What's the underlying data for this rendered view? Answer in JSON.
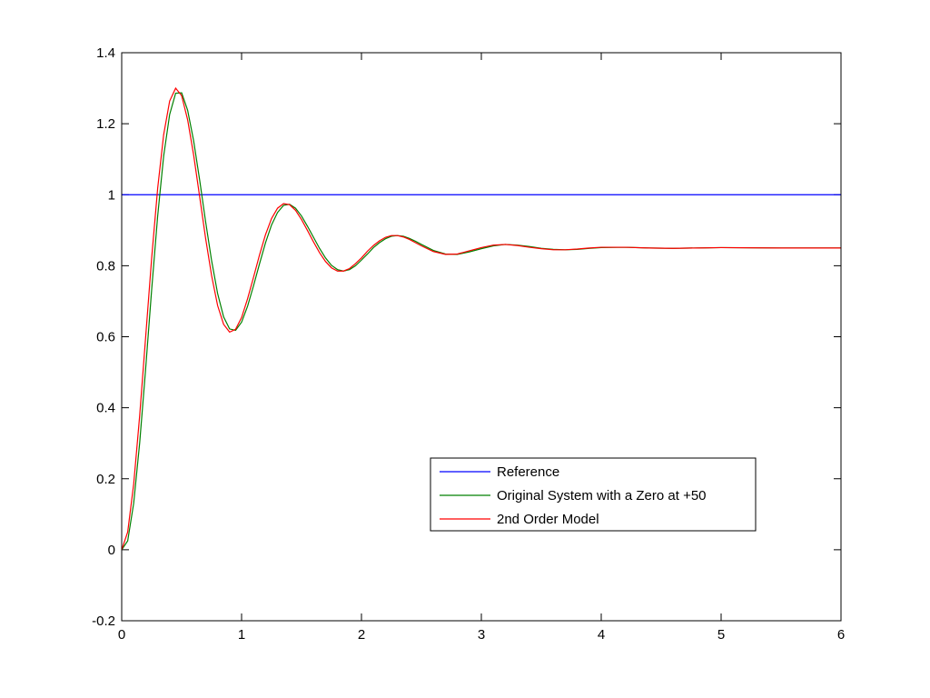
{
  "chart_data": {
    "type": "line",
    "x": [
      0,
      0.05,
      0.1,
      0.15,
      0.2,
      0.25,
      0.3,
      0.35,
      0.4,
      0.45,
      0.5,
      0.55,
      0.6,
      0.65,
      0.7,
      0.75,
      0.8,
      0.85,
      0.9,
      0.95,
      1.0,
      1.05,
      1.1,
      1.15,
      1.2,
      1.25,
      1.3,
      1.35,
      1.4,
      1.45,
      1.5,
      1.55,
      1.6,
      1.65,
      1.7,
      1.75,
      1.8,
      1.85,
      1.9,
      1.95,
      2.0,
      2.05,
      2.1,
      2.15,
      2.2,
      2.25,
      2.3,
      2.35,
      2.4,
      2.45,
      2.5,
      2.6,
      2.7,
      2.8,
      2.9,
      3.0,
      3.1,
      3.2,
      3.3,
      3.4,
      3.5,
      3.6,
      3.7,
      3.8,
      3.9,
      4.0,
      4.2,
      4.4,
      4.6,
      4.8,
      5.0,
      5.5,
      6.0
    ],
    "series": [
      {
        "name": "Reference",
        "color": "#0000ff",
        "x": [
          0,
          6
        ],
        "values": [
          1,
          1
        ]
      },
      {
        "name": "Original System with a Zero at +50",
        "color": "#008000",
        "values": [
          0,
          0.025,
          0.131,
          0.301,
          0.511,
          0.733,
          0.94,
          1.109,
          1.226,
          1.286,
          1.287,
          1.238,
          1.152,
          1.042,
          0.924,
          0.814,
          0.722,
          0.656,
          0.622,
          0.618,
          0.641,
          0.686,
          0.744,
          0.806,
          0.865,
          0.915,
          0.95,
          0.97,
          0.973,
          0.962,
          0.94,
          0.911,
          0.88,
          0.849,
          0.822,
          0.801,
          0.789,
          0.785,
          0.789,
          0.8,
          0.816,
          0.833,
          0.851,
          0.865,
          0.876,
          0.883,
          0.885,
          0.883,
          0.877,
          0.869,
          0.86,
          0.843,
          0.833,
          0.832,
          0.839,
          0.848,
          0.856,
          0.86,
          0.858,
          0.854,
          0.849,
          0.846,
          0.845,
          0.846,
          0.849,
          0.851,
          0.852,
          0.85,
          0.849,
          0.85,
          0.851,
          0.85,
          0.85
        ]
      },
      {
        "name": "2nd Order Model",
        "color": "#ff0000",
        "values": [
          0,
          0.05,
          0.185,
          0.378,
          0.6,
          0.822,
          1.018,
          1.169,
          1.264,
          1.3,
          1.279,
          1.211,
          1.112,
          0.995,
          0.877,
          0.772,
          0.688,
          0.635,
          0.613,
          0.621,
          0.654,
          0.707,
          0.768,
          0.831,
          0.888,
          0.933,
          0.962,
          0.975,
          0.972,
          0.956,
          0.93,
          0.899,
          0.867,
          0.837,
          0.812,
          0.794,
          0.785,
          0.785,
          0.792,
          0.806,
          0.822,
          0.841,
          0.857,
          0.87,
          0.88,
          0.885,
          0.885,
          0.881,
          0.874,
          0.865,
          0.856,
          0.84,
          0.832,
          0.833,
          0.842,
          0.851,
          0.858,
          0.86,
          0.857,
          0.852,
          0.848,
          0.845,
          0.845,
          0.847,
          0.85,
          0.852,
          0.852,
          0.85,
          0.849,
          0.85,
          0.851,
          0.85,
          0.85
        ]
      }
    ],
    "xlim": [
      0,
      6
    ],
    "xticks": [
      0,
      1,
      2,
      3,
      4,
      5,
      6
    ],
    "ylim": [
      -0.2,
      1.4
    ],
    "yticks": [
      -0.2,
      0,
      0.2,
      0.4,
      0.6,
      0.8,
      1,
      1.2,
      1.4
    ],
    "grid": false,
    "legend": "lower-right"
  }
}
